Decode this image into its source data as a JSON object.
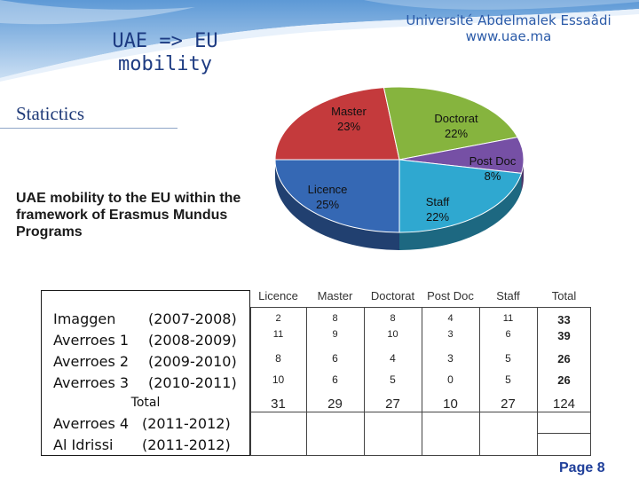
{
  "header": {
    "title_line1": "UAE => EU",
    "title_line2": "mobility",
    "university_name": "Université Abdelmalek Essaâdi",
    "university_url": "www.uae.ma"
  },
  "section_title": "Statictics",
  "description": "UAE mobility to the EU within the framework of Erasmus Mundus Programs",
  "chart_data": {
    "type": "pie",
    "title": "",
    "slices": [
      {
        "label": "Master",
        "value": 23,
        "display": "23%",
        "color": "#c43a3c"
      },
      {
        "label": "Doctorat",
        "value": 22,
        "display": "22%",
        "color": "#86b43e"
      },
      {
        "label": "Post Doc",
        "value": 8,
        "display": "8%",
        "color": "#7650a5"
      },
      {
        "label": "Staff",
        "value": 22,
        "display": "22%",
        "color": "#2fa8d0"
      },
      {
        "label": "Licence",
        "value": 25,
        "display": "25%",
        "color": "#3568b4"
      }
    ]
  },
  "programs": [
    {
      "name": "Imaggen",
      "years": "(2007-2008)"
    },
    {
      "name": "Averroes 1",
      "years": "(2008-2009)"
    },
    {
      "name": "Averroes 2",
      "years": "(2009-2010)"
    },
    {
      "name": "Averroes 3",
      "years": "(2010-2011)"
    }
  ],
  "programs_total_label": "Total",
  "programs_extra": [
    {
      "name": "Averroes 4",
      "years": "(2011-2012)"
    },
    {
      "name": "Al Idrissi",
      "years": "(2011-2012)"
    }
  ],
  "table": {
    "columns": [
      "Licence",
      "Master",
      "Doctorat",
      "Post Doc",
      "Staff",
      "Total"
    ],
    "rows": [
      [
        "2",
        "8",
        "8",
        "4",
        "11",
        "33"
      ],
      [
        "11",
        "9",
        "10",
        "3",
        "6",
        "39"
      ],
      [
        "8",
        "6",
        "4",
        "3",
        "5",
        "26"
      ],
      [
        "10",
        "6",
        "5",
        "0",
        "5",
        "26"
      ],
      [
        "31",
        "29",
        "27",
        "10",
        "27",
        "124"
      ]
    ]
  },
  "page_label": "Page 8"
}
